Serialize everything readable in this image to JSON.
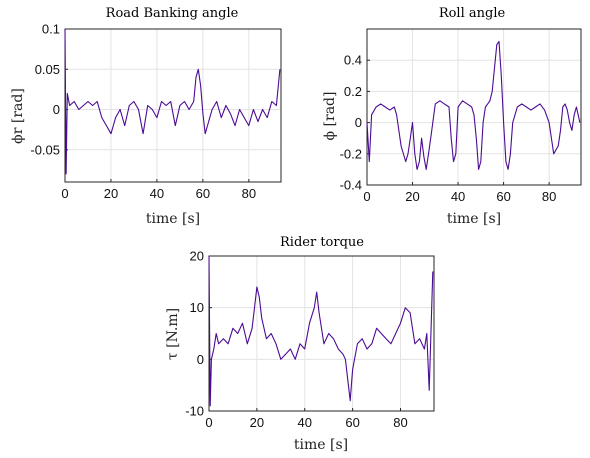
{
  "colors": {
    "series": "#4b0b94"
  },
  "chart_data": [
    {
      "type": "line",
      "title": "Road Banking angle",
      "xlabel": "time [s]",
      "ylabel": "ϕr [rad]",
      "xlim": [
        0,
        94
      ],
      "ylim": [
        -0.09,
        0.1
      ],
      "xticks": [
        0,
        20,
        40,
        60,
        80
      ],
      "xtick_labels": [
        "0",
        "20",
        "40",
        "60",
        "80"
      ],
      "yticks": [
        -0.05,
        0,
        0.05,
        0.1
      ],
      "ytick_labels": [
        "-0.05",
        "0",
        "0.05",
        "0.1"
      ],
      "grid": true,
      "series": [
        {
          "x": [
            0,
            0.5,
            1,
            2,
            4,
            6,
            8,
            10,
            12,
            14,
            16,
            18,
            20,
            22,
            24,
            26,
            28,
            30,
            32,
            34,
            36,
            38,
            40,
            42,
            44,
            46,
            48,
            50,
            52,
            54,
            56,
            57,
            58,
            59,
            60,
            61,
            62,
            64,
            66,
            68,
            70,
            72,
            74,
            76,
            78,
            80,
            82,
            84,
            86,
            88,
            90,
            92,
            93.5
          ],
          "y": [
            0.1,
            -0.08,
            0.02,
            0.005,
            0.01,
            0.0,
            0.005,
            0.01,
            0.005,
            0.01,
            -0.01,
            -0.02,
            -0.03,
            -0.01,
            0.0,
            -0.02,
            0.005,
            0.01,
            0.0,
            -0.03,
            0.005,
            0.0,
            -0.01,
            0.01,
            0.005,
            0.01,
            -0.02,
            0.005,
            0.01,
            0.0,
            0.01,
            0.04,
            0.05,
            0.03,
            -0.005,
            -0.03,
            -0.02,
            0.0,
            0.01,
            -0.01,
            0.005,
            -0.005,
            -0.02,
            0.0,
            -0.01,
            -0.02,
            0.0,
            -0.015,
            0.0,
            -0.01,
            0.01,
            0.005,
            0.05
          ]
        }
      ]
    },
    {
      "type": "line",
      "title": "Roll angle",
      "xlabel": "time [s]",
      "ylabel": "ϕ [rad]",
      "xlim": [
        0,
        94
      ],
      "ylim": [
        -0.4,
        0.6
      ],
      "xticks": [
        0,
        20,
        40,
        60,
        80
      ],
      "xtick_labels": [
        "0",
        "20",
        "40",
        "60",
        "80"
      ],
      "yticks": [
        -0.4,
        -0.2,
        0,
        0.2,
        0.4
      ],
      "ytick_labels": [
        "-0.4",
        "-0.2",
        "0",
        "0.2",
        "0.4"
      ],
      "grid": true,
      "series": [
        {
          "x": [
            0,
            1,
            2,
            4,
            6,
            8,
            10,
            12,
            13,
            15,
            17,
            18,
            19,
            20,
            21,
            22,
            23,
            24,
            25,
            26,
            27,
            28,
            30,
            32,
            34,
            36,
            37,
            38,
            39,
            40,
            41,
            42,
            44,
            46,
            47,
            48,
            49,
            50,
            51,
            52,
            53,
            54,
            55,
            56,
            57,
            58,
            59,
            60,
            61,
            62,
            63,
            64,
            66,
            68,
            70,
            72,
            74,
            76,
            78,
            80,
            81,
            82,
            84,
            85,
            86,
            87,
            88,
            89,
            90,
            91,
            92,
            93.5
          ],
          "y": [
            0.0,
            -0.25,
            0.05,
            0.1,
            0.12,
            0.1,
            0.08,
            0.1,
            0.05,
            -0.15,
            -0.25,
            -0.2,
            -0.1,
            0.0,
            -0.2,
            -0.3,
            -0.25,
            -0.1,
            -0.22,
            -0.3,
            -0.2,
            -0.1,
            0.12,
            0.14,
            0.12,
            0.1,
            -0.1,
            -0.25,
            -0.2,
            0.1,
            0.12,
            0.14,
            0.12,
            0.1,
            0.05,
            -0.1,
            -0.3,
            -0.25,
            0.0,
            0.1,
            0.12,
            0.14,
            0.2,
            0.35,
            0.5,
            0.52,
            0.3,
            0.0,
            -0.25,
            -0.3,
            -0.2,
            0.0,
            0.1,
            0.12,
            0.1,
            0.08,
            0.1,
            0.12,
            0.08,
            0.0,
            -0.1,
            -0.2,
            -0.15,
            -0.05,
            0.1,
            0.12,
            0.08,
            0.0,
            -0.05,
            0.05,
            0.1,
            0.0
          ]
        }
      ]
    },
    {
      "type": "line",
      "title": "Rider torque",
      "xlabel": "time [s]",
      "ylabel": "τ [N.m]",
      "xlim": [
        0,
        94
      ],
      "ylim": [
        -10,
        20
      ],
      "xticks": [
        0,
        20,
        40,
        60,
        80
      ],
      "xtick_labels": [
        "0",
        "20",
        "40",
        "60",
        "80"
      ],
      "yticks": [
        -10,
        0,
        10,
        20
      ],
      "ytick_labels": [
        "-10",
        "0",
        "10",
        "20"
      ],
      "grid": true,
      "series": [
        {
          "x": [
            0,
            0.5,
            1,
            2,
            3,
            4,
            6,
            8,
            10,
            12,
            14,
            16,
            18,
            19,
            20,
            21,
            22,
            24,
            26,
            28,
            30,
            32,
            34,
            36,
            38,
            40,
            42,
            44,
            45,
            46,
            48,
            50,
            52,
            54,
            56,
            57,
            58,
            59,
            60,
            62,
            64,
            66,
            68,
            70,
            72,
            74,
            76,
            78,
            80,
            82,
            84,
            86,
            88,
            90,
            91,
            92,
            93.5
          ],
          "y": [
            20,
            -9,
            0,
            2,
            5,
            3,
            4,
            3,
            6,
            5,
            7,
            3,
            6,
            10,
            14,
            12,
            8,
            4,
            5,
            3,
            0,
            1,
            2,
            0,
            3,
            2,
            7,
            10,
            13,
            9,
            3,
            5,
            4,
            2,
            1,
            0,
            -4,
            -8,
            -2,
            3,
            4,
            2,
            3,
            6,
            5,
            4,
            3,
            5,
            7,
            10,
            9,
            3,
            4,
            2,
            5,
            -6,
            17
          ]
        }
      ]
    }
  ]
}
